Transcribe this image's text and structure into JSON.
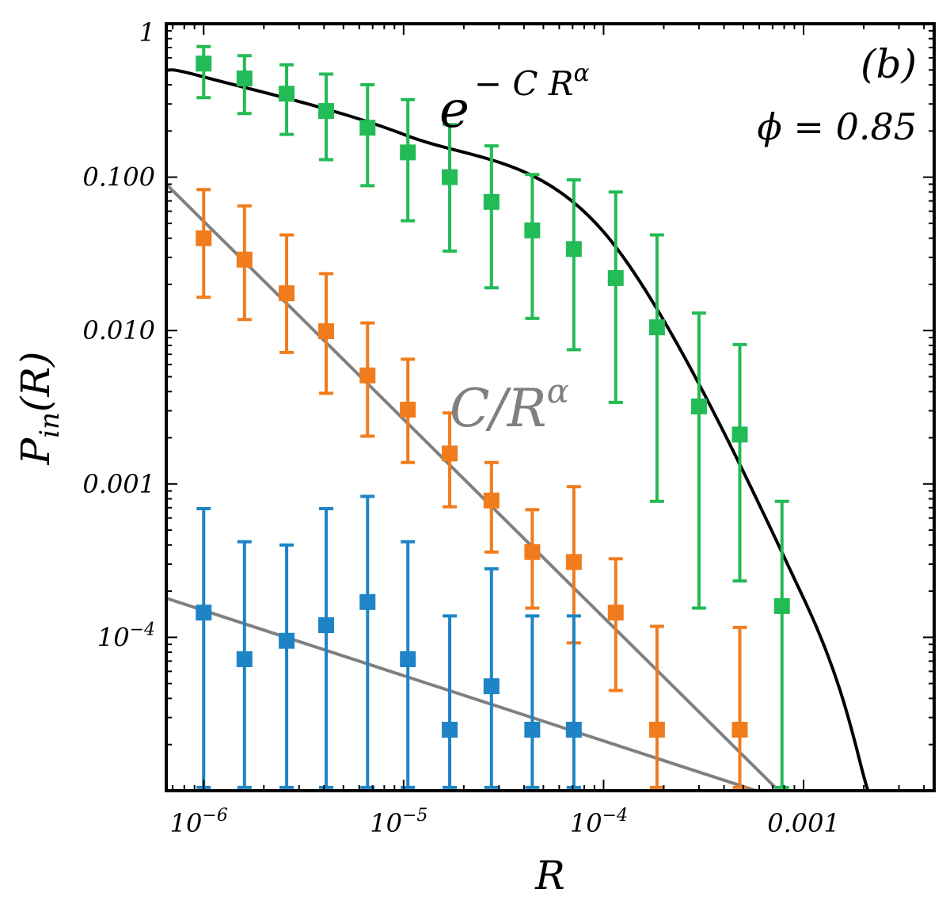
{
  "chart_data": {
    "type": "scatter",
    "title": "",
    "xlabel": "R",
    "ylabel": "P_in(R)",
    "xscale": "log",
    "yscale": "log",
    "xlim": [
      6.5e-07,
      0.0045
    ],
    "ylim": [
      1e-05,
      1
    ],
    "grid": false,
    "x_ticks": [
      {
        "value": 1e-06,
        "base": "10",
        "exp": "−6",
        "text": ""
      },
      {
        "value": 1e-05,
        "base": "10",
        "exp": "−5",
        "text": ""
      },
      {
        "value": 0.0001,
        "base": "10",
        "exp": "−4",
        "text": ""
      },
      {
        "value": 0.001,
        "base": "",
        "exp": "",
        "text": "0.001"
      }
    ],
    "y_ticks": [
      {
        "value": 1,
        "base": "",
        "exp": "",
        "text": "1"
      },
      {
        "value": 0.1,
        "base": "",
        "exp": "",
        "text": "0.100"
      },
      {
        "value": 0.01,
        "base": "",
        "exp": "",
        "text": "0.010"
      },
      {
        "value": 0.001,
        "base": "",
        "exp": "",
        "text": "0.001"
      },
      {
        "value": 0.0001,
        "base": "10",
        "exp": "−4",
        "text": ""
      }
    ],
    "annotations": {
      "panel": "(b)",
      "phi": "ϕ = 0.85",
      "exp_fit_base": "e",
      "exp_fit_exponent": "− C R",
      "exp_fit_alpha": "α",
      "power_fit_label": "C/R",
      "power_fit_alpha": "α"
    },
    "series": [
      {
        "color": "#22bb55",
        "x": [
          1e-06,
          1.6e-06,
          2.6e-06,
          4.1e-06,
          6.6e-06,
          1.05e-05,
          1.7e-05,
          2.75e-05,
          4.4e-05,
          7.1e-05,
          0.000115,
          0.000185,
          0.0003,
          0.00048,
          0.00078
        ],
        "y": [
          0.55,
          0.44,
          0.35,
          0.27,
          0.21,
          0.145,
          0.1,
          0.069,
          0.045,
          0.034,
          0.022,
          0.0105,
          0.0032,
          0.0021,
          0.00016
        ],
        "err_low": [
          0.33,
          0.26,
          0.19,
          0.13,
          0.088,
          0.052,
          0.033,
          0.019,
          0.012,
          0.0075,
          0.0034,
          0.00077,
          0.000155,
          0.000233,
          1.05e-05
        ],
        "err_high": [
          0.71,
          0.62,
          0.54,
          0.47,
          0.4,
          0.32,
          0.22,
          0.16,
          0.104,
          0.096,
          0.08,
          0.042,
          0.013,
          0.0081,
          0.00077
        ]
      },
      {
        "color": "#f07c1e",
        "x": [
          1e-06,
          1.6e-06,
          2.6e-06,
          4.1e-06,
          6.6e-06,
          1.05e-05,
          1.7e-05,
          2.75e-05,
          4.4e-05,
          7.1e-05,
          0.000115,
          0.000185,
          0.00048
        ],
        "y": [
          0.04,
          0.029,
          0.0175,
          0.0099,
          0.0051,
          0.00305,
          0.00158,
          0.00078,
          0.00036,
          0.00031,
          0.000145,
          2.5e-05,
          2.5e-05
        ],
        "err_low": [
          0.0165,
          0.0118,
          0.0072,
          0.0039,
          0.00205,
          0.00138,
          0.00071,
          0.00036,
          0.000155,
          9.2e-05,
          4.5e-05,
          1.05e-05,
          1.05e-05
        ],
        "err_high": [
          0.083,
          0.065,
          0.042,
          0.0235,
          0.0112,
          0.0065,
          0.0029,
          0.00138,
          0.00068,
          0.00096,
          0.000325,
          0.000118,
          0.000116
        ]
      },
      {
        "color": "#1e84c6",
        "x": [
          1e-06,
          1.6e-06,
          2.6e-06,
          4.1e-06,
          6.6e-06,
          1.05e-05,
          1.7e-05,
          2.75e-05,
          4.4e-05,
          7.1e-05
        ],
        "y": [
          0.000145,
          7.2e-05,
          9.5e-05,
          0.00012,
          0.00017,
          7.2e-05,
          2.5e-05,
          4.8e-05,
          2.5e-05,
          2.5e-05
        ],
        "err_low": [
          1.05e-05,
          1.05e-05,
          1.05e-05,
          1.05e-05,
          1.05e-05,
          1.05e-05,
          1.05e-05,
          1.05e-05,
          1.05e-05,
          1.05e-05
        ],
        "err_high": [
          0.00069,
          0.00042,
          0.0004,
          0.00069,
          0.00083,
          0.00042,
          0.000138,
          0.00028,
          0.000138,
          0.000138
        ]
      }
    ],
    "fit_lines": [
      {
        "kind": "exp-stretched",
        "color": "#000000",
        "x": [
          6.5e-07,
          1e-06,
          1e-05,
          0.0001,
          0.001,
          0.0021
        ],
        "y": [
          0.5,
          0.45,
          0.19,
          0.044,
          0.00018,
          1e-05
        ]
      },
      {
        "kind": "power",
        "color": "#808080",
        "x": [
          6.5e-07,
          0.00075
        ],
        "y": [
          0.09,
          1e-05
        ]
      },
      {
        "kind": "power",
        "color": "#808080",
        "x": [
          6.5e-07,
          0.00058
        ],
        "y": [
          0.00018,
          1e-05
        ]
      }
    ]
  }
}
